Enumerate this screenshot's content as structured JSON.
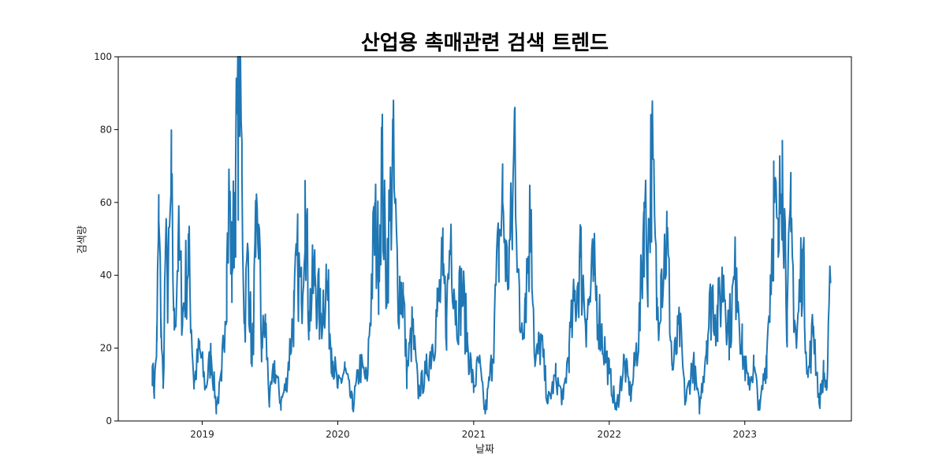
{
  "chart_data": {
    "type": "line",
    "title": "산업용 촉매관련 검색 트렌드",
    "xlabel": "날짜",
    "ylabel": "검색량",
    "xlim": [
      "2018-05-20",
      "2023-10-15"
    ],
    "ylim": [
      0,
      100
    ],
    "x_ticks": [
      "2019-01-01",
      "2020-01-01",
      "2021-01-01",
      "2022-01-01",
      "2023-01-01"
    ],
    "x_tick_labels": [
      "2019",
      "2020",
      "2021",
      "2022",
      "2023"
    ],
    "y_ticks": [
      0,
      20,
      40,
      60,
      80,
      100
    ],
    "y_tick_labels": [
      "0",
      "20",
      "40",
      "60",
      "80",
      "100"
    ],
    "grid": false,
    "line_color": "#1f77b4",
    "series": [
      {
        "x_start": "2018-08-20",
        "x_end": "2023-08-20",
        "frequency": "daily (approx.)",
        "points": [
          [
            "2018-08-20",
            15
          ],
          [
            "2018-08-25",
            8
          ],
          [
            "2018-09-01",
            22
          ],
          [
            "2018-09-06",
            55
          ],
          [
            "2018-09-12",
            28
          ],
          [
            "2018-09-18",
            9
          ],
          [
            "2018-09-24",
            46
          ],
          [
            "2018-10-01",
            35
          ],
          [
            "2018-10-10",
            62
          ],
          [
            "2018-10-18",
            25
          ],
          [
            "2018-10-28",
            48
          ],
          [
            "2018-11-10",
            30
          ],
          [
            "2018-11-25",
            46
          ],
          [
            "2018-12-10",
            10
          ],
          [
            "2018-12-25",
            20
          ],
          [
            "2019-01-10",
            9
          ],
          [
            "2019-01-25",
            18
          ],
          [
            "2019-02-08",
            4
          ],
          [
            "2019-02-22",
            11
          ],
          [
            "2019-03-08",
            42
          ],
          [
            "2019-03-15",
            62
          ],
          [
            "2019-03-22",
            40
          ],
          [
            "2019-04-01",
            69
          ],
          [
            "2019-04-08",
            83
          ],
          [
            "2019-04-12",
            100
          ],
          [
            "2019-04-18",
            68
          ],
          [
            "2019-04-25",
            28
          ],
          [
            "2019-05-05",
            46
          ],
          [
            "2019-05-15",
            15
          ],
          [
            "2019-05-25",
            45
          ],
          [
            "2019-06-02",
            54
          ],
          [
            "2019-06-10",
            20
          ],
          [
            "2019-06-20",
            27
          ],
          [
            "2019-07-01",
            5
          ],
          [
            "2019-07-15",
            15
          ],
          [
            "2019-08-01",
            5
          ],
          [
            "2019-08-15",
            10
          ],
          [
            "2019-09-05",
            30
          ],
          [
            "2019-09-15",
            43
          ],
          [
            "2019-09-25",
            33
          ],
          [
            "2019-10-05",
            66
          ],
          [
            "2019-10-15",
            30
          ],
          [
            "2019-11-01",
            40
          ],
          [
            "2019-11-15",
            28
          ],
          [
            "2019-12-01",
            39
          ],
          [
            "2019-12-15",
            20
          ],
          [
            "2020-01-01",
            9
          ],
          [
            "2020-01-20",
            14
          ],
          [
            "2020-02-10",
            4
          ],
          [
            "2020-03-01",
            15
          ],
          [
            "2020-03-20",
            11
          ],
          [
            "2020-04-01",
            38
          ],
          [
            "2020-04-10",
            53
          ],
          [
            "2020-04-20",
            45
          ],
          [
            "2020-04-28",
            71
          ],
          [
            "2020-05-10",
            40
          ],
          [
            "2020-05-20",
            55
          ],
          [
            "2020-05-28",
            72
          ],
          [
            "2020-06-10",
            38
          ],
          [
            "2020-06-25",
            35
          ],
          [
            "2020-07-05",
            13
          ],
          [
            "2020-07-20",
            25
          ],
          [
            "2020-08-05",
            8
          ],
          [
            "2020-08-25",
            13
          ],
          [
            "2020-09-10",
            20
          ],
          [
            "2020-09-25",
            30
          ],
          [
            "2020-10-10",
            40
          ],
          [
            "2020-10-20",
            28
          ],
          [
            "2020-11-01",
            54
          ],
          [
            "2020-11-15",
            30
          ],
          [
            "2020-12-01",
            36
          ],
          [
            "2020-12-15",
            22
          ],
          [
            "2021-01-01",
            9
          ],
          [
            "2021-01-15",
            16
          ],
          [
            "2021-02-01",
            2
          ],
          [
            "2021-02-20",
            17
          ],
          [
            "2021-03-10",
            48
          ],
          [
            "2021-03-20",
            60
          ],
          [
            "2021-04-01",
            40
          ],
          [
            "2021-04-15",
            54
          ],
          [
            "2021-04-22",
            82
          ],
          [
            "2021-05-05",
            25
          ],
          [
            "2021-05-20",
            35
          ],
          [
            "2021-06-05",
            58
          ],
          [
            "2021-06-15",
            15
          ],
          [
            "2021-07-01",
            22
          ],
          [
            "2021-07-20",
            5
          ],
          [
            "2021-08-10",
            12
          ],
          [
            "2021-08-30",
            6
          ],
          [
            "2021-09-15",
            20
          ],
          [
            "2021-10-01",
            33
          ],
          [
            "2021-10-15",
            45
          ],
          [
            "2021-11-01",
            28
          ],
          [
            "2021-11-20",
            40
          ],
          [
            "2021-12-10",
            25
          ],
          [
            "2022-01-01",
            13
          ],
          [
            "2022-01-20",
            3
          ],
          [
            "2022-02-10",
            16
          ],
          [
            "2022-03-01",
            7
          ],
          [
            "2022-03-25",
            28
          ],
          [
            "2022-04-05",
            60
          ],
          [
            "2022-04-15",
            45
          ],
          [
            "2022-04-25",
            74
          ],
          [
            "2022-05-10",
            30
          ],
          [
            "2022-05-20",
            40
          ],
          [
            "2022-06-05",
            50
          ],
          [
            "2022-06-20",
            14
          ],
          [
            "2022-07-10",
            25
          ],
          [
            "2022-07-25",
            5
          ],
          [
            "2022-08-15",
            16
          ],
          [
            "2022-09-01",
            3
          ],
          [
            "2022-09-20",
            22
          ],
          [
            "2022-10-05",
            35
          ],
          [
            "2022-10-20",
            28
          ],
          [
            "2022-11-05",
            40
          ],
          [
            "2022-11-20",
            25
          ],
          [
            "2022-12-10",
            42
          ],
          [
            "2022-12-25",
            20
          ],
          [
            "2023-01-10",
            10
          ],
          [
            "2023-01-25",
            15
          ],
          [
            "2023-02-10",
            3
          ],
          [
            "2023-03-01",
            18
          ],
          [
            "2023-03-20",
            60
          ],
          [
            "2023-04-01",
            45
          ],
          [
            "2023-04-12",
            77
          ],
          [
            "2023-04-25",
            30
          ],
          [
            "2023-05-05",
            52
          ],
          [
            "2023-05-20",
            20
          ],
          [
            "2023-06-05",
            47
          ],
          [
            "2023-06-20",
            12
          ],
          [
            "2023-07-05",
            26
          ],
          [
            "2023-07-20",
            5
          ],
          [
            "2023-08-01",
            13
          ],
          [
            "2023-08-10",
            9
          ],
          [
            "2023-08-20",
            38
          ]
        ]
      }
    ]
  }
}
